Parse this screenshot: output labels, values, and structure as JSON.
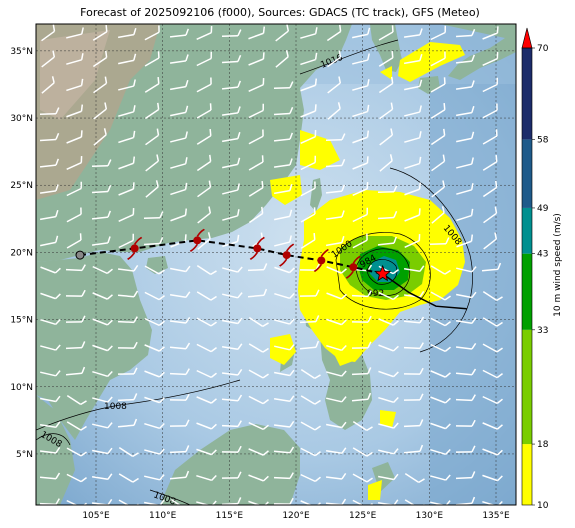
{
  "title": "Forecast of 2025092106 (f000), Sources: GDACS (TC track), GFS (Meteo)",
  "axes": {
    "lon_ticks": [
      "105°E",
      "110°E",
      "115°E",
      "120°E",
      "125°E",
      "130°E",
      "135°E"
    ],
    "lat_ticks": [
      "35°N",
      "30°N",
      "25°N",
      "20°N",
      "15°N",
      "10°N",
      "5°N"
    ],
    "lon_range": [
      100.5,
      136.5
    ],
    "lat_range": [
      1.2,
      37
    ]
  },
  "colorbar": {
    "label": "10 m wind speed (m/s)",
    "ticks": [
      "70",
      "58",
      "49",
      "43",
      "33",
      "18",
      "10"
    ],
    "bands": [
      {
        "from": 10,
        "to": 18,
        "color": "#ffff00"
      },
      {
        "from": 18,
        "to": 33,
        "color": "#7acd00"
      },
      {
        "from": 33,
        "to": 43,
        "color": "#00a000"
      },
      {
        "from": 43,
        "to": 49,
        "color": "#009090"
      },
      {
        "from": 49,
        "to": 58,
        "color": "#1e5a8a"
      },
      {
        "from": 58,
        "to": 70,
        "color": "#1c2c6a"
      }
    ],
    "over_color": "#ff0000"
  },
  "isobars": [
    {
      "value": "1016"
    },
    {
      "value": "1008"
    },
    {
      "value": "1008"
    },
    {
      "value": "1000"
    },
    {
      "value": "992"
    },
    {
      "value": "984"
    },
    {
      "value": "1008"
    },
    {
      "value": "1008"
    }
  ],
  "track": {
    "forecast": [
      {
        "lon": 103.8,
        "lat": 19.8
      },
      {
        "lon": 107.9,
        "lat": 20.3
      },
      {
        "lon": 112.6,
        "lat": 20.9
      },
      {
        "lon": 117.1,
        "lat": 20.3
      },
      {
        "lon": 119.3,
        "lat": 19.8
      },
      {
        "lon": 121.9,
        "lat": 19.4
      },
      {
        "lon": 124.3,
        "lat": 18.9
      },
      {
        "lon": 126.5,
        "lat": 18.4
      }
    ],
    "past": [
      {
        "lon": 126.5,
        "lat": 18.4
      },
      {
        "lon": 128.5,
        "lat": 17.0
      },
      {
        "lon": 130.5,
        "lat": 16.0
      },
      {
        "lon": 132.8,
        "lat": 15.8
      }
    ],
    "current_position": {
      "lon": 126.5,
      "lat": 18.4
    }
  },
  "colors": {
    "ocean": "#7fb0d8",
    "land": "#8fb39a",
    "track": "#000000",
    "storm_symbol": "#b00000",
    "star": "#ff0000"
  }
}
